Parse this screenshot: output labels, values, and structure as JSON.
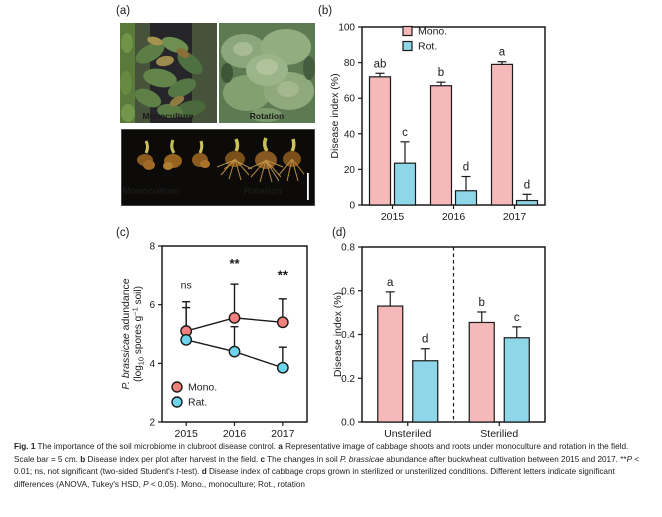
{
  "figure": {
    "panel_labels": {
      "a": "(a)",
      "b": "(b)",
      "c": "(c)",
      "d": "(d)"
    },
    "photos": {
      "shoot_left_label": "Monoculture",
      "shoot_right_label": "Rotation",
      "root_left_label": "Monoculture",
      "root_right_label": "Rotation"
    },
    "caption": {
      "segments": [
        {
          "t": "Fig. 1",
          "b": 1
        },
        {
          "t": "  The importance of the soil microbiome in clubroot disease control. "
        },
        {
          "t": "a",
          "b": 1
        },
        {
          "t": " Representative image of cabbage shoots and roots under monoculture and rotation in the field. Scale bar = 5 cm. "
        },
        {
          "t": "b",
          "b": 1
        },
        {
          "t": " Disease index per plot after harvest in the field. "
        },
        {
          "t": "c",
          "b": 1
        },
        {
          "t": " The changes in soil "
        },
        {
          "t": "P. brassicae",
          "i": 1
        },
        {
          "t": " abundance after buckwheat cultivation between 2015 and 2017. **"
        },
        {
          "t": "P",
          "i": 1
        },
        {
          "t": " < 0.01; ns, not significant (two-sided Student's "
        },
        {
          "t": "t",
          "i": 1
        },
        {
          "t": "-test). "
        },
        {
          "t": "d",
          "b": 1
        },
        {
          "t": " Disease index of cabbage crops grown in sterilized or unsterilized conditions. Different letters indicate significant differences (ANOVA, Tukey's HSD, "
        },
        {
          "t": "P",
          "i": 1
        },
        {
          "t": " < 0.05). Mono., monoculture; Rot., rotation"
        }
      ]
    }
  },
  "colors": {
    "mono_bar": "#f6b9ba",
    "rot_bar": "#8ed7e8",
    "mono_marker": "#f4807e",
    "rot_marker": "#6ed5ef",
    "axis": "#1a1a1a"
  },
  "chart_data": [
    {
      "id": "b",
      "type": "bar",
      "ylabel": "Disease index (%)",
      "ylim": [
        0,
        100
      ],
      "yticks": [
        0,
        20,
        40,
        60,
        80,
        100
      ],
      "grid": false,
      "legend_position": "top-left-inside",
      "categories": [
        "2015",
        "2016",
        "2017"
      ],
      "series": [
        {
          "name": "Mono.",
          "color": "#f6b9ba",
          "values": [
            72,
            67,
            79
          ],
          "err_up": [
            2,
            2,
            1.5
          ],
          "letters": [
            "ab",
            "b",
            "a"
          ]
        },
        {
          "name": "Rot.",
          "color": "#8ed7e8",
          "values": [
            23.5,
            8,
            2.5
          ],
          "err_up": [
            12,
            8,
            3.5
          ],
          "letters": [
            "c",
            "d",
            "d"
          ]
        }
      ]
    },
    {
      "id": "c",
      "type": "line",
      "ylabel_italic": "P. brassicae",
      "ylabel_rest": " adundance",
      "ylabel_line2": {
        "p1": "(log",
        "sub": "10",
        "p2": " spores g",
        "sup": "−1",
        "p3": " soil)"
      },
      "ylim": [
        2,
        8
      ],
      "yticks": [
        2,
        4,
        6,
        8
      ],
      "grid": false,
      "legend_position": "bottom-left-inside",
      "categories": [
        "2015",
        "2016",
        "2017"
      ],
      "series": [
        {
          "name": "Mono.",
          "color": "#f4807e",
          "values": [
            5.1,
            5.55,
            5.4
          ],
          "err_up": [
            1.0,
            1.15,
            0.8
          ]
        },
        {
          "name": "Rat.",
          "color": "#6ed5ef",
          "values": [
            4.8,
            4.4,
            3.85
          ],
          "err_up": [
            1.1,
            0.85,
            0.7
          ]
        }
      ],
      "annotations": [
        {
          "x": "2015",
          "label": "ns",
          "y": 6.55
        },
        {
          "x": "2016",
          "label": "**",
          "y": 7.25
        },
        {
          "x": "2017",
          "label": "**",
          "y": 6.85
        }
      ]
    },
    {
      "id": "d",
      "type": "bar",
      "ylabel": "Disease index (%)",
      "ylim": [
        0,
        0.8
      ],
      "yticks": [
        0,
        0.2,
        0.4,
        0.6,
        0.8
      ],
      "ytick_decimals": 1,
      "grid": false,
      "divider": true,
      "categories": [
        "Unsteriled",
        "Sterilied"
      ],
      "series": [
        {
          "name": "Mono.",
          "color": "#f6b9ba",
          "values": [
            0.53,
            0.455
          ],
          "err_up": [
            0.065,
            0.048
          ],
          "letters": [
            "a",
            "b"
          ]
        },
        {
          "name": "Rot.",
          "color": "#8ed7e8",
          "values": [
            0.28,
            0.385
          ],
          "err_up": [
            0.055,
            0.05
          ],
          "letters": [
            "d",
            "c"
          ]
        }
      ]
    }
  ]
}
